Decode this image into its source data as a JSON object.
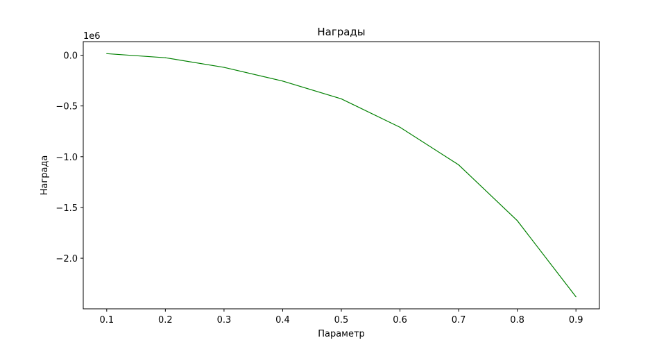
{
  "chart_data": {
    "type": "line",
    "title": "Награды",
    "xlabel": "Параметр",
    "ylabel": "Награда",
    "y_offset_label": "1e6",
    "x": [
      0.1,
      0.2,
      0.3,
      0.4,
      0.5,
      0.6,
      0.7,
      0.8,
      0.9
    ],
    "series": [
      {
        "values": [
          0.015,
          -0.025,
          -0.12,
          -0.255,
          -0.43,
          -0.71,
          -1.08,
          -1.63,
          -2.38
        ],
        "color": "#008000"
      }
    ],
    "xticks": [
      0.1,
      0.2,
      0.3,
      0.4,
      0.5,
      0.6,
      0.7,
      0.8,
      0.9
    ],
    "xtick_labels": [
      "0.1",
      "0.2",
      "0.3",
      "0.4",
      "0.5",
      "0.6",
      "0.7",
      "0.8",
      "0.9"
    ],
    "yticks": [
      0.0,
      -0.5,
      -1.0,
      -1.5,
      -2.0
    ],
    "ytick_labels": [
      "0.0",
      "−0.5",
      "−1.0",
      "−1.5",
      "−2.0"
    ],
    "xlim": [
      0.06,
      0.94
    ],
    "ylim": [
      -2.4985,
      0.1335
    ],
    "grid": false,
    "legend": "none"
  }
}
